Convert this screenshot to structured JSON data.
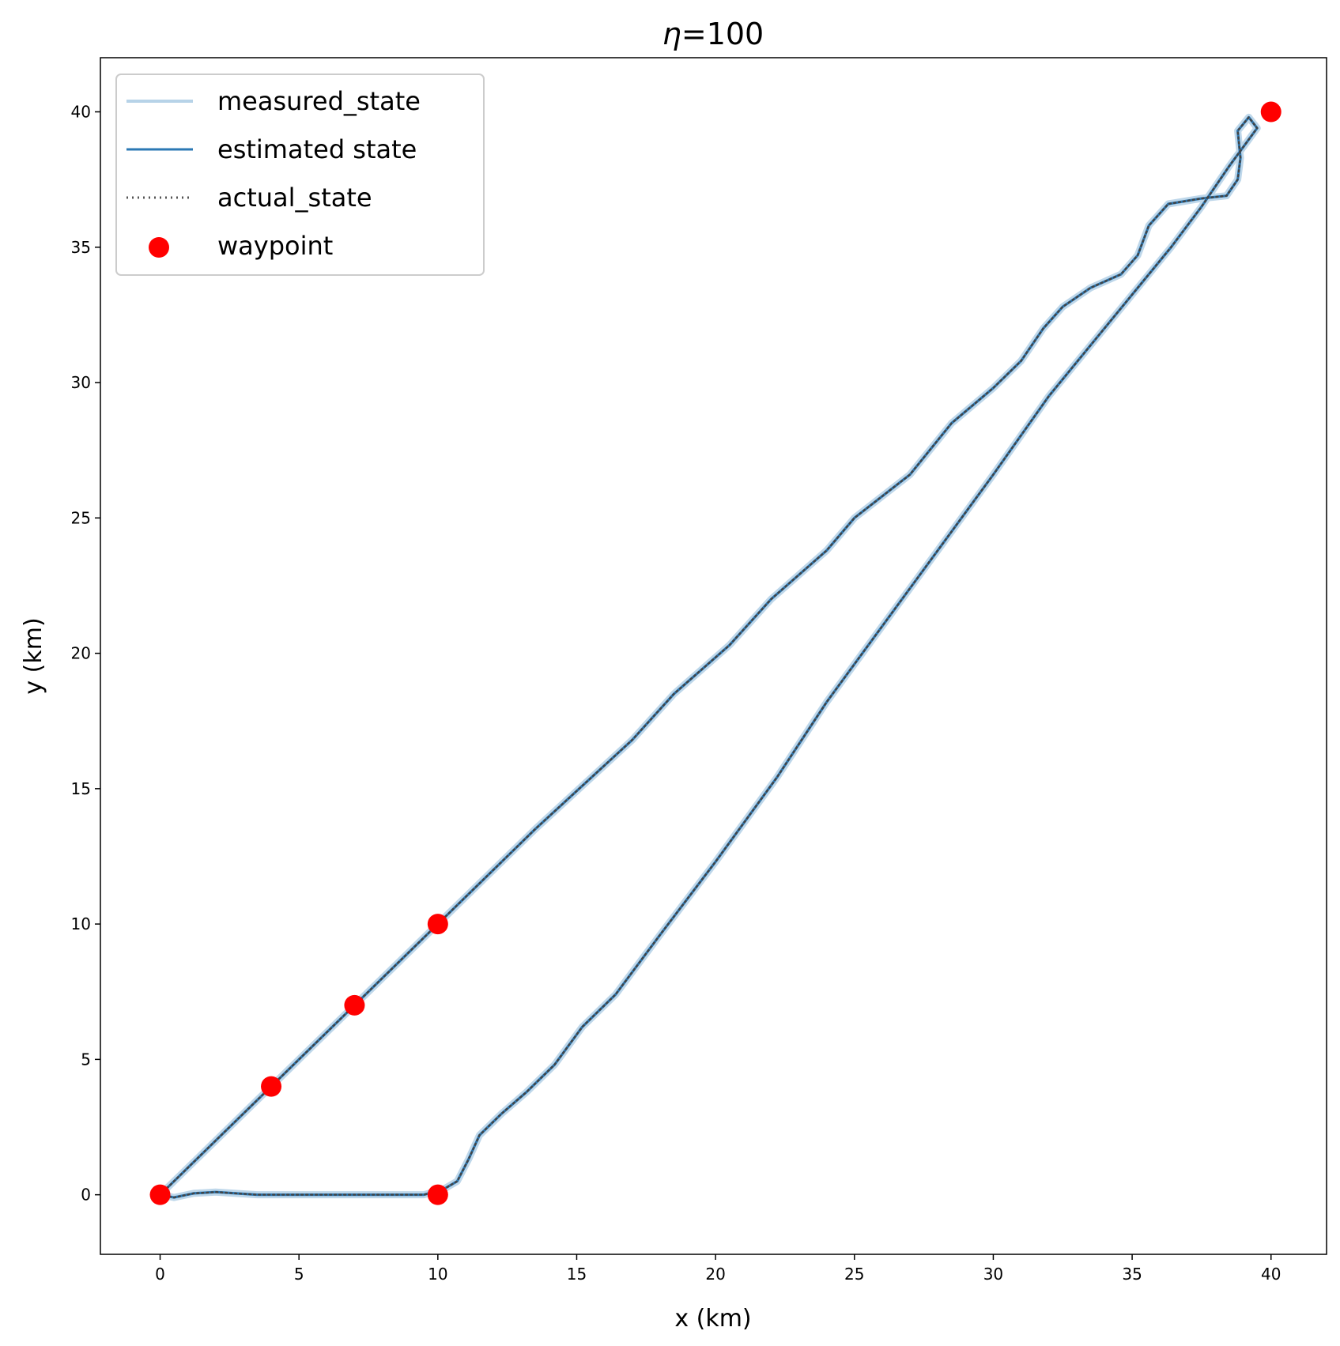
{
  "chart_data": {
    "type": "line",
    "title": "η=100",
    "title_symbol": "η",
    "title_value": "=100",
    "xlabel": "x (km)",
    "ylabel": "y (km)",
    "xlim": [
      -2.15,
      42.0
    ],
    "ylim": [
      -2.2,
      42.0
    ],
    "xticks": [
      0,
      5,
      10,
      15,
      20,
      25,
      30,
      35,
      40
    ],
    "yticks": [
      0,
      5,
      10,
      15,
      20,
      25,
      30,
      35,
      40
    ],
    "grid": false,
    "legend_position": "upper-left",
    "legend": [
      {
        "label": "measured_state",
        "style": "line",
        "color": "#b7d3e8"
      },
      {
        "label": "estimated state",
        "style": "line",
        "color": "#2b78b4"
      },
      {
        "label": "actual_state",
        "style": "dotted",
        "color": "#555555"
      },
      {
        "label": "waypoint",
        "style": "marker",
        "color": "#ff0000"
      }
    ],
    "series": [
      {
        "name": "measured_state",
        "color": "#b7d3e8",
        "points": [
          [
            0,
            0
          ],
          [
            0.3,
            0.3
          ],
          [
            2,
            2
          ],
          [
            4,
            4
          ],
          [
            7,
            7
          ],
          [
            10,
            10
          ],
          [
            13.5,
            13.5
          ],
          [
            17,
            16.8
          ],
          [
            18.5,
            18.5
          ],
          [
            20.5,
            20.3
          ],
          [
            22,
            22
          ],
          [
            24,
            23.8
          ],
          [
            25,
            25
          ],
          [
            27,
            26.6
          ],
          [
            28.5,
            28.5
          ],
          [
            30,
            29.8
          ],
          [
            31,
            30.8
          ],
          [
            31.8,
            32
          ],
          [
            32.5,
            32.8
          ],
          [
            33.5,
            33.5
          ],
          [
            34.6,
            34
          ],
          [
            35.2,
            34.7
          ],
          [
            35.6,
            35.8
          ],
          [
            36.3,
            36.6
          ],
          [
            37.5,
            36.8
          ],
          [
            38.4,
            36.9
          ],
          [
            38.8,
            37.5
          ],
          [
            38.9,
            38.3
          ],
          [
            38.8,
            39.3
          ],
          [
            39.2,
            39.8
          ],
          [
            39.5,
            39.4
          ],
          [
            38.5,
            38.0
          ],
          [
            37.5,
            36.5
          ],
          [
            36.4,
            35.0
          ],
          [
            35.2,
            33.5
          ],
          [
            34,
            32
          ],
          [
            32,
            29.5
          ],
          [
            30,
            26.6
          ],
          [
            28,
            23.8
          ],
          [
            26,
            21
          ],
          [
            24,
            18.2
          ],
          [
            22.2,
            15.4
          ],
          [
            20,
            12.3
          ],
          [
            18,
            9.6
          ],
          [
            16.4,
            7.4
          ],
          [
            15.2,
            6.2
          ],
          [
            14.2,
            4.8
          ],
          [
            13.2,
            3.8
          ],
          [
            12.3,
            3.0
          ],
          [
            11.5,
            2.2
          ],
          [
            11.1,
            1.3
          ],
          [
            10.7,
            0.5
          ],
          [
            10.2,
            0.2
          ],
          [
            9.5,
            0.0
          ],
          [
            7.5,
            0.0
          ],
          [
            5,
            0.0
          ],
          [
            3.5,
            0.0
          ],
          [
            2,
            0.1
          ],
          [
            1.2,
            0.05
          ],
          [
            0.5,
            -0.1
          ],
          [
            0,
            0
          ]
        ]
      },
      {
        "name": "estimated state",
        "color": "#2b78b4",
        "points": [
          [
            0,
            0
          ],
          [
            0.3,
            0.3
          ],
          [
            2,
            2
          ],
          [
            4,
            4
          ],
          [
            7,
            7
          ],
          [
            10,
            10
          ],
          [
            13.5,
            13.5
          ],
          [
            17,
            16.8
          ],
          [
            18.5,
            18.5
          ],
          [
            20.5,
            20.3
          ],
          [
            22,
            22
          ],
          [
            24,
            23.8
          ],
          [
            25,
            25
          ],
          [
            27,
            26.6
          ],
          [
            28.5,
            28.5
          ],
          [
            30,
            29.8
          ],
          [
            31,
            30.8
          ],
          [
            31.8,
            32
          ],
          [
            32.5,
            32.8
          ],
          [
            33.5,
            33.5
          ],
          [
            34.6,
            34
          ],
          [
            35.2,
            34.7
          ],
          [
            35.6,
            35.8
          ],
          [
            36.3,
            36.6
          ],
          [
            37.5,
            36.8
          ],
          [
            38.4,
            36.9
          ],
          [
            38.8,
            37.5
          ],
          [
            38.9,
            38.3
          ],
          [
            38.8,
            39.3
          ],
          [
            39.2,
            39.8
          ],
          [
            39.5,
            39.4
          ],
          [
            38.5,
            38.0
          ],
          [
            37.5,
            36.5
          ],
          [
            36.4,
            35.0
          ],
          [
            35.2,
            33.5
          ],
          [
            34,
            32
          ],
          [
            32,
            29.5
          ],
          [
            30,
            26.6
          ],
          [
            28,
            23.8
          ],
          [
            26,
            21
          ],
          [
            24,
            18.2
          ],
          [
            22.2,
            15.4
          ],
          [
            20,
            12.3
          ],
          [
            18,
            9.6
          ],
          [
            16.4,
            7.4
          ],
          [
            15.2,
            6.2
          ],
          [
            14.2,
            4.8
          ],
          [
            13.2,
            3.8
          ],
          [
            12.3,
            3.0
          ],
          [
            11.5,
            2.2
          ],
          [
            11.1,
            1.3
          ],
          [
            10.7,
            0.5
          ],
          [
            10.2,
            0.2
          ],
          [
            9.5,
            0.0
          ],
          [
            7.5,
            0.0
          ],
          [
            5,
            0.0
          ],
          [
            3.5,
            0.0
          ],
          [
            2,
            0.1
          ],
          [
            1.2,
            0.05
          ],
          [
            0.5,
            -0.1
          ],
          [
            0,
            0
          ]
        ]
      },
      {
        "name": "actual_state",
        "color": "#444444",
        "points": [
          [
            0,
            0
          ],
          [
            0.3,
            0.3
          ],
          [
            2,
            2
          ],
          [
            4,
            4
          ],
          [
            7,
            7
          ],
          [
            10,
            10
          ],
          [
            13.5,
            13.5
          ],
          [
            17,
            16.8
          ],
          [
            18.5,
            18.5
          ],
          [
            20.5,
            20.3
          ],
          [
            22,
            22
          ],
          [
            24,
            23.8
          ],
          [
            25,
            25
          ],
          [
            27,
            26.6
          ],
          [
            28.5,
            28.5
          ],
          [
            30,
            29.8
          ],
          [
            31,
            30.8
          ],
          [
            31.8,
            32
          ],
          [
            32.5,
            32.8
          ],
          [
            33.5,
            33.5
          ],
          [
            34.6,
            34
          ],
          [
            35.2,
            34.7
          ],
          [
            35.6,
            35.8
          ],
          [
            36.3,
            36.6
          ],
          [
            37.5,
            36.8
          ],
          [
            38.4,
            36.9
          ],
          [
            38.8,
            37.5
          ],
          [
            38.9,
            38.3
          ],
          [
            38.8,
            39.3
          ],
          [
            39.2,
            39.8
          ],
          [
            39.5,
            39.4
          ],
          [
            38.5,
            38.0
          ],
          [
            37.5,
            36.5
          ],
          [
            36.4,
            35.0
          ],
          [
            35.2,
            33.5
          ],
          [
            34,
            32
          ],
          [
            32,
            29.5
          ],
          [
            30,
            26.6
          ],
          [
            28,
            23.8
          ],
          [
            26,
            21
          ],
          [
            24,
            18.2
          ],
          [
            22.2,
            15.4
          ],
          [
            20,
            12.3
          ],
          [
            18,
            9.6
          ],
          [
            16.4,
            7.4
          ],
          [
            15.2,
            6.2
          ],
          [
            14.2,
            4.8
          ],
          [
            13.2,
            3.8
          ],
          [
            12.3,
            3.0
          ],
          [
            11.5,
            2.2
          ],
          [
            11.1,
            1.3
          ],
          [
            10.7,
            0.5
          ],
          [
            10.2,
            0.2
          ],
          [
            9.5,
            0.0
          ],
          [
            7.5,
            0.0
          ],
          [
            5,
            0.0
          ],
          [
            3.5,
            0.0
          ],
          [
            2,
            0.1
          ],
          [
            1.2,
            0.05
          ],
          [
            0.5,
            -0.1
          ],
          [
            0,
            0
          ]
        ]
      }
    ],
    "waypoints": [
      [
        0,
        0
      ],
      [
        4,
        4
      ],
      [
        7,
        7
      ],
      [
        10,
        10
      ],
      [
        40,
        40
      ],
      [
        10,
        0
      ]
    ]
  }
}
